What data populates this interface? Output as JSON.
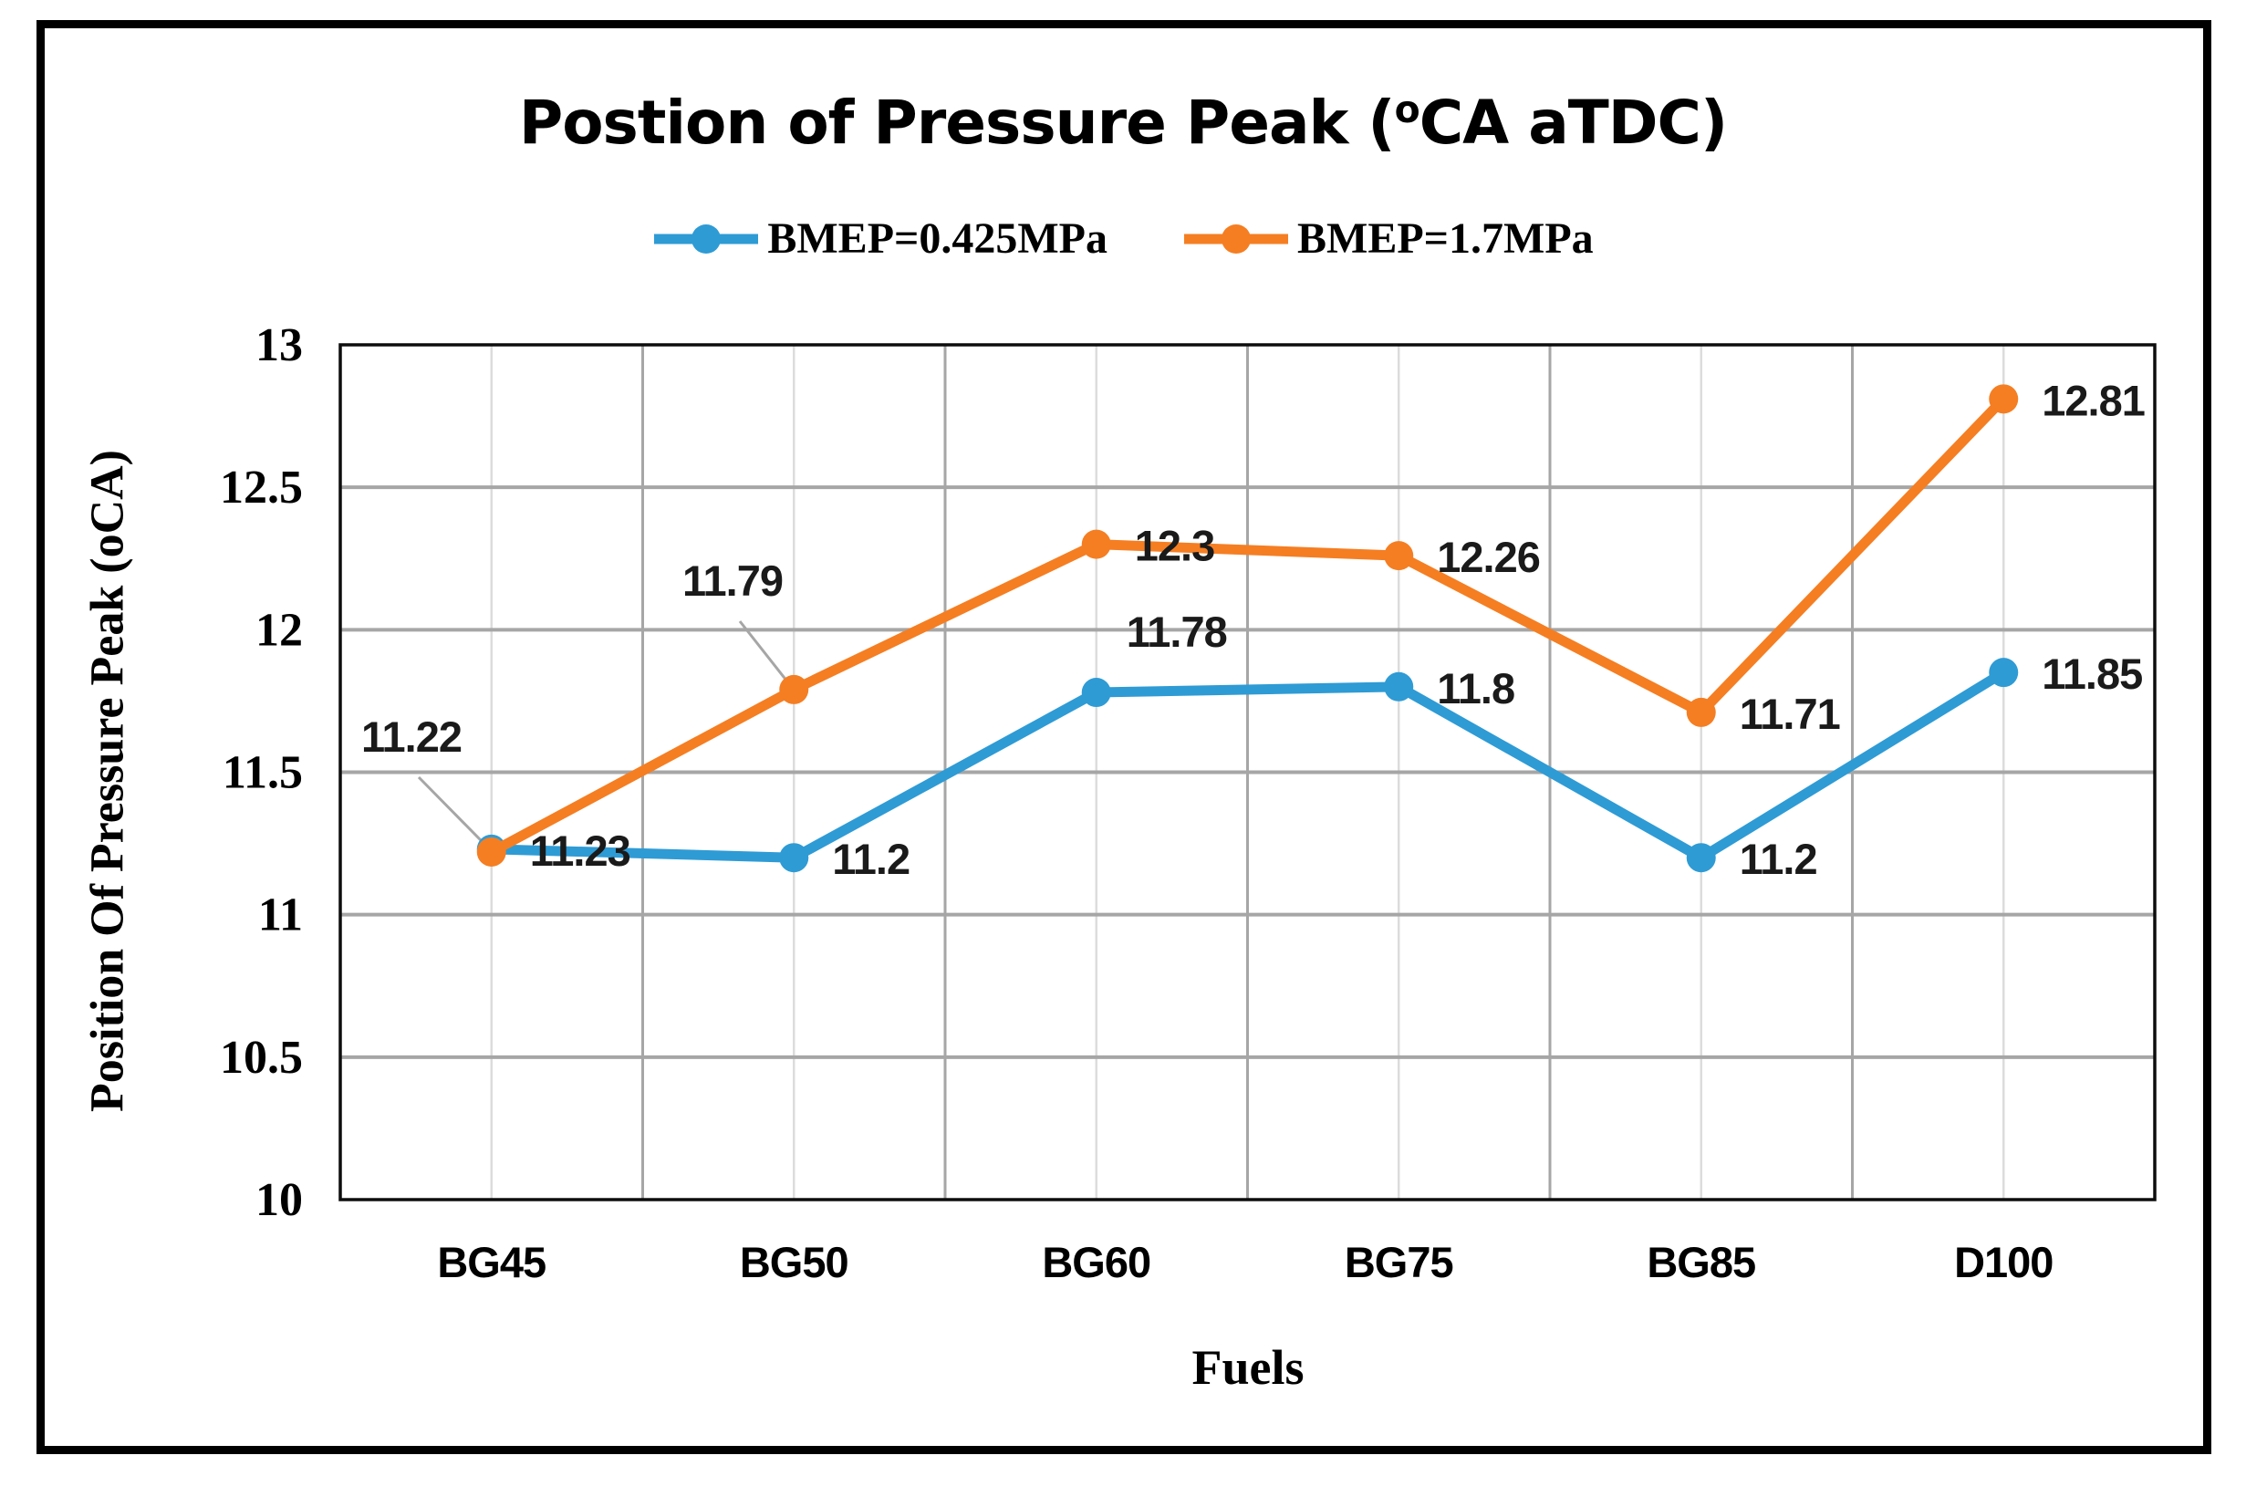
{
  "figure": {
    "title": {
      "prefix": "Postion of Pressure Peak (",
      "sup": "o",
      "suffix": "CA aTDC)"
    }
  },
  "chart_data": {
    "type": "line",
    "title": "Postion of Pressure Peak (oCA aTDC)",
    "xlabel": "Fuels",
    "ylabel": "Position Of Pressure Peak (oCA)",
    "categories": [
      "BG45",
      "BG50",
      "BG60",
      "BG75",
      "BG85",
      "D100"
    ],
    "ylim": [
      10,
      13
    ],
    "ytick_interval": 0.5,
    "ytick_labels": [
      "13",
      "12.5",
      "12",
      "11.5",
      "11",
      "10.5",
      "10"
    ],
    "grid": true,
    "legend_position": "top-center",
    "series": [
      {
        "name": "BMEP=0.425MPa",
        "color": "#2E9BD5",
        "values": [
          11.23,
          11.2,
          11.78,
          11.8,
          11.2,
          11.85
        ],
        "point_labels": [
          "11.23",
          "11.2",
          "11.78",
          "11.8",
          "11.2",
          "11.85"
        ],
        "label_placement": [
          "right",
          "right",
          "above",
          "right",
          "right",
          "right"
        ]
      },
      {
        "name": "BMEP=1.7MPa",
        "color": "#F57E22",
        "values": [
          11.22,
          11.79,
          12.3,
          12.26,
          11.71,
          12.81
        ],
        "point_labels": [
          "11.22",
          "11.79",
          "12.3",
          "12.26",
          "11.71",
          "12.81"
        ],
        "label_placement": [
          "callout",
          "callout",
          "right",
          "right",
          "right",
          "right"
        ]
      }
    ],
    "colors": {
      "gridline": "#A6A6A6",
      "minor_gridline": "#DCDCDC",
      "axis": "#0D0D0D",
      "data_label": "#1A1A1A",
      "leader_line": "#A6A6A6"
    }
  }
}
